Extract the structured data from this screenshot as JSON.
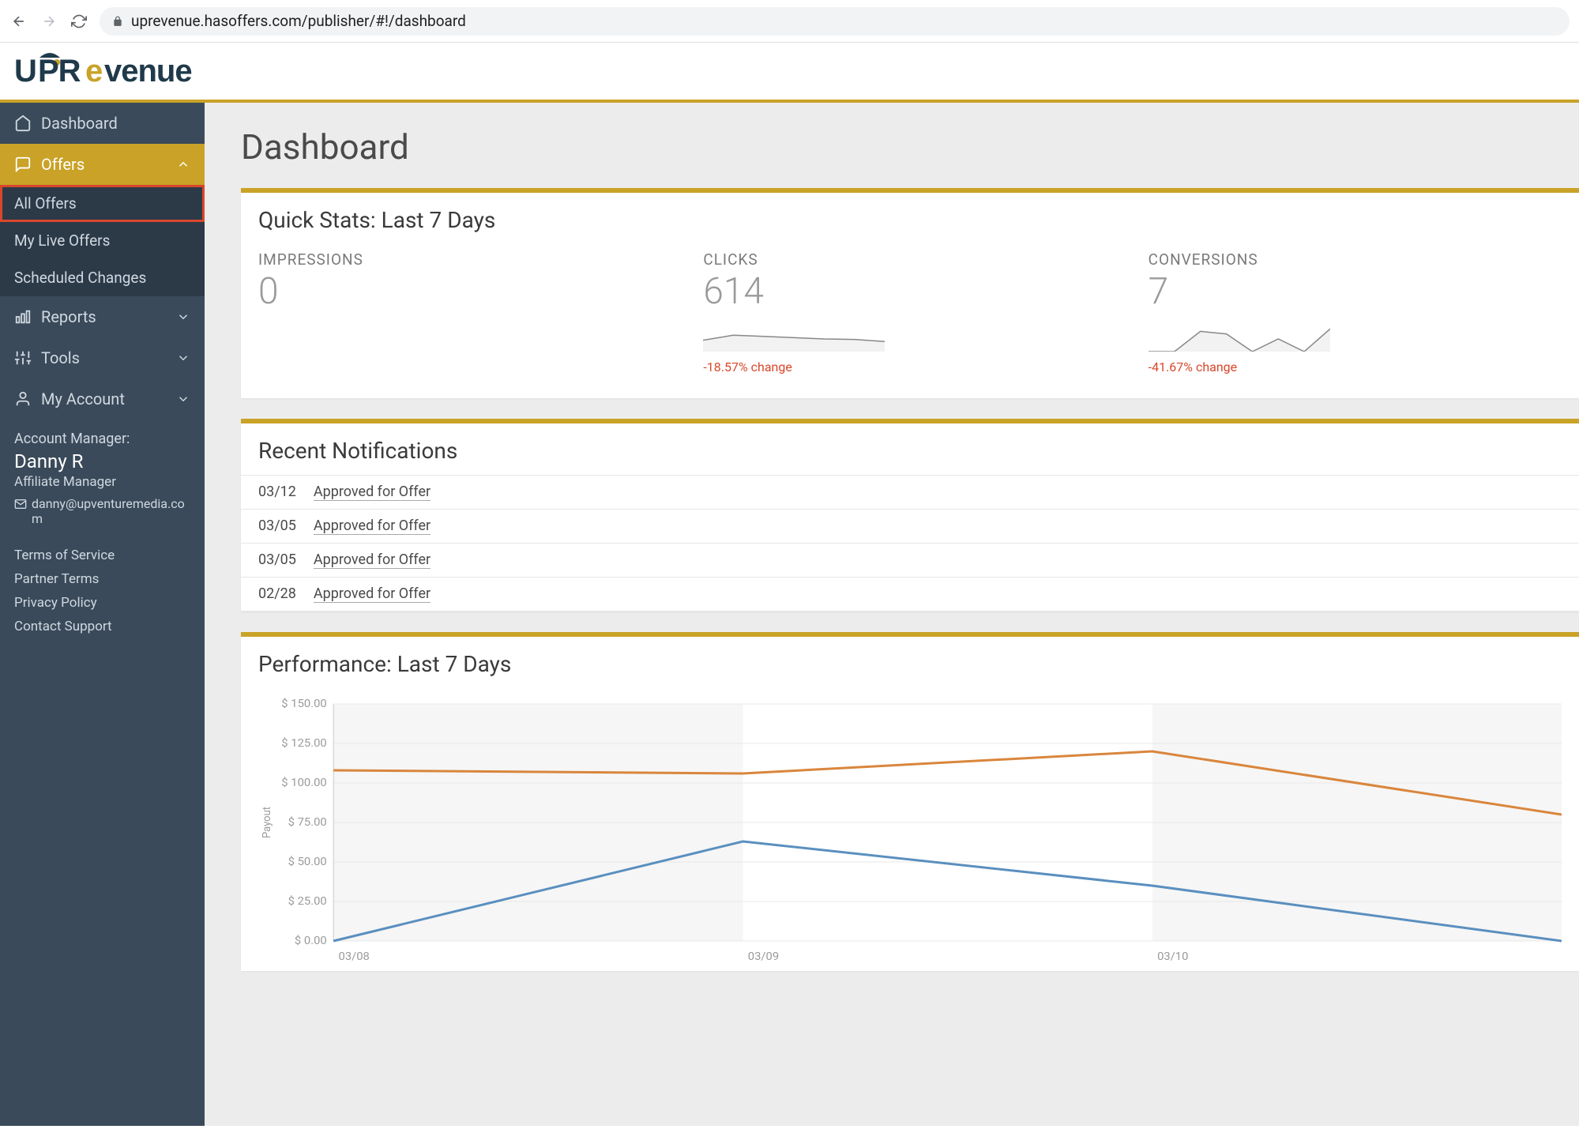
{
  "browser": {
    "url": "uprevenue.hasoffers.com/publisher/#!/dashboard"
  },
  "logo_text": "UPRevenue",
  "sidebar": {
    "items": [
      {
        "icon": "home",
        "label": "Dashboard",
        "expandable": false
      },
      {
        "icon": "chat",
        "label": "Offers",
        "expandable": true,
        "active": true,
        "expanded": true,
        "children": [
          {
            "label": "All Offers",
            "highlighted": true
          },
          {
            "label": "My Live Offers"
          },
          {
            "label": "Scheduled Changes"
          }
        ]
      },
      {
        "icon": "chart",
        "label": "Reports",
        "expandable": true
      },
      {
        "icon": "sliders",
        "label": "Tools",
        "expandable": true
      },
      {
        "icon": "user",
        "label": "My Account",
        "expandable": true
      }
    ],
    "account_manager": {
      "heading": "Account Manager:",
      "name": "Danny R",
      "role": "Affiliate Manager",
      "email": "danny@upventuremedia.com"
    },
    "links": [
      "Terms of Service",
      "Partner Terms",
      "Privacy Policy",
      "Contact Support"
    ]
  },
  "page_title": "Dashboard",
  "quick_stats": {
    "title": "Quick Stats: Last 7 Days",
    "stats": [
      {
        "label": "IMPRESSIONS",
        "value": "0",
        "sparkline": null,
        "change": null
      },
      {
        "label": "CLICKS",
        "value": "614",
        "sparkline": {
          "points": [
            0.55,
            0.35,
            0.4,
            0.45,
            0.5,
            0.52,
            0.6
          ],
          "fill": "#f2f2f2",
          "stroke": "#888888"
        },
        "change": "-18.57% change"
      },
      {
        "label": "CONVERSIONS",
        "value": "7",
        "sparkline": {
          "points": [
            1.0,
            1.0,
            0.2,
            0.3,
            1.0,
            0.5,
            1.0,
            0.1
          ],
          "fill": "#f2f2f2",
          "stroke": "#888888"
        },
        "change": "-41.67% change"
      }
    ],
    "change_color": "#d9472b"
  },
  "notifications": {
    "title": "Recent Notifications",
    "rows": [
      {
        "date": "03/12",
        "text": "Approved for Offer"
      },
      {
        "date": "03/05",
        "text": "Approved for Offer"
      },
      {
        "date": "03/05",
        "text": "Approved for Offer"
      },
      {
        "date": "02/28",
        "text": "Approved for Offer"
      }
    ]
  },
  "performance": {
    "title": "Performance: Last 7 Days",
    "type": "line",
    "y_axis_label": "Payout",
    "ylim": [
      0,
      150
    ],
    "ytick_step": 25,
    "y_ticks": [
      "$ 0.00",
      "$ 25.00",
      "$ 50.00",
      "$ 75.00",
      "$ 100.00",
      "$ 125.00",
      "$ 150.00"
    ],
    "x_labels": [
      "03/08",
      "03/09",
      "03/10"
    ],
    "background_band_color": "#f6f6f6",
    "grid_color": "#e8e8e8",
    "series": [
      {
        "name": "series1",
        "color": "#d9863d",
        "stroke_width": 3,
        "points": [
          [
            0,
            108
          ],
          [
            0.5,
            106
          ],
          [
            1,
            120
          ],
          [
            1.5,
            80
          ]
        ]
      },
      {
        "name": "series2",
        "color": "#5a8fbf",
        "stroke_width": 3,
        "points": [
          [
            0,
            0
          ],
          [
            0.5,
            63
          ],
          [
            1,
            35
          ],
          [
            1.5,
            0
          ]
        ]
      }
    ],
    "label_fontsize": 14,
    "label_color": "#9a9a9a"
  },
  "colors": {
    "sidebar_bg": "#3a4a5a",
    "sidebar_sub_bg": "#2c3a48",
    "accent": "#c9a227",
    "highlight_outline": "#d9472b",
    "main_bg": "#ececec",
    "text_muted": "#9a9a9a"
  }
}
